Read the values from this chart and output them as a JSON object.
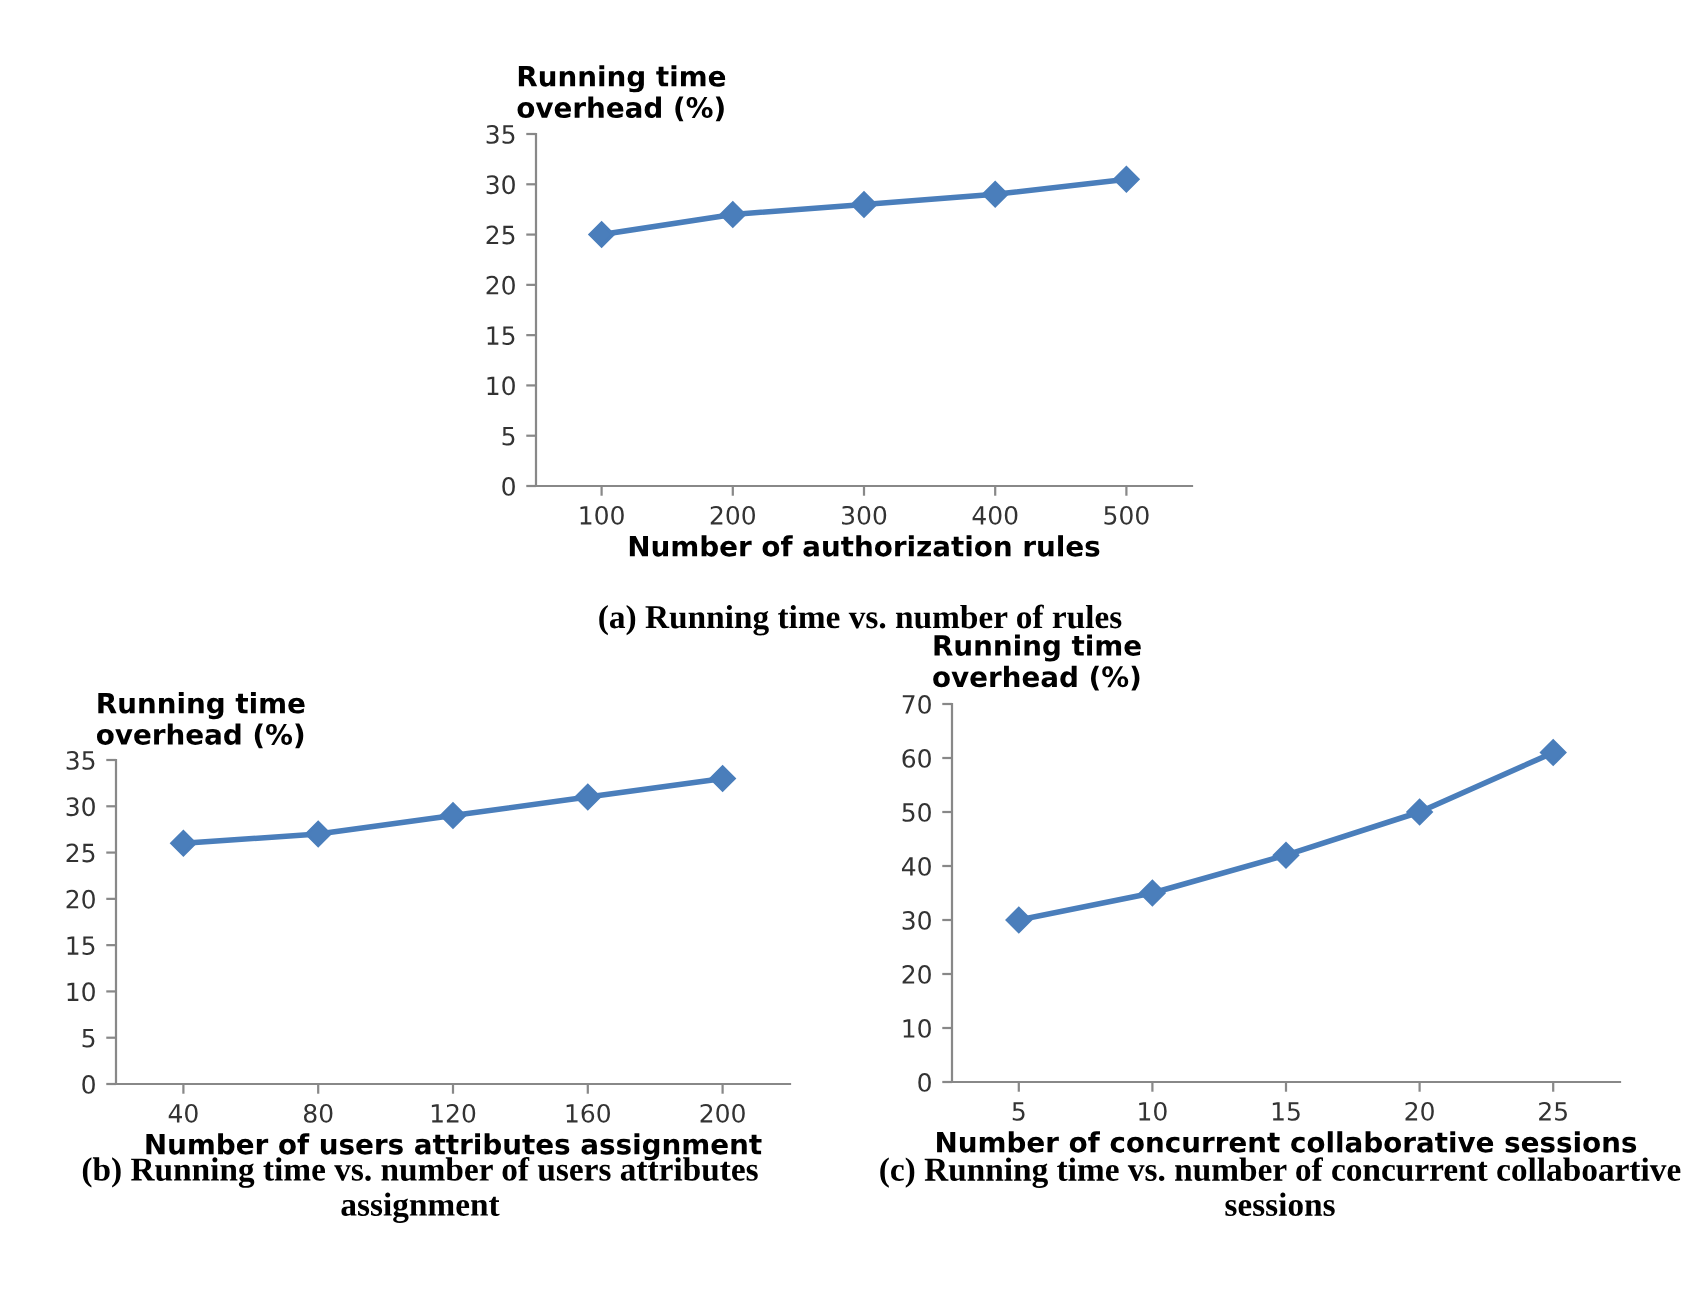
{
  "chart_data": [
    {
      "type": "line",
      "title": "(a) Running time vs. number of rules",
      "ylabel": "Running time\noverhead (%)",
      "xlabel": "Number of authorization rules",
      "categories": [
        "100",
        "200",
        "300",
        "400",
        "500"
      ],
      "series": [
        {
          "color": "#4a7ebb",
          "values": [
            25,
            27,
            28,
            29,
            30.5
          ]
        }
      ],
      "ylim": [
        0,
        35
      ],
      "yticks": [
        0,
        5,
        10,
        15,
        20,
        25,
        30,
        35
      ],
      "marker": "diamond",
      "line_style": "solid",
      "grid": false,
      "legend": false
    },
    {
      "type": "line",
      "title": "(b) Running time vs. number of users attributes assignment",
      "ylabel": "Running time\noverhead (%)",
      "xlabel": "Number of users attributes assignment",
      "categories": [
        "40",
        "80",
        "120",
        "160",
        "200"
      ],
      "series": [
        {
          "color": "#4a7ebb",
          "values": [
            26,
            27,
            29,
            31,
            33
          ]
        }
      ],
      "ylim": [
        0,
        35
      ],
      "yticks": [
        0,
        5,
        10,
        15,
        20,
        25,
        30,
        35
      ],
      "marker": "diamond",
      "line_style": "solid",
      "grid": false,
      "legend": false
    },
    {
      "type": "line",
      "title": "(c) Running time vs. number of concurrent collaboartive sessions",
      "ylabel": "Running time\noverhead (%)",
      "xlabel": "Number of concurrent collaborative sessions",
      "categories": [
        "5",
        "10",
        "15",
        "20",
        "25"
      ],
      "series": [
        {
          "color": "#4a7ebb",
          "values": [
            30,
            35,
            42,
            50,
            61
          ]
        }
      ],
      "ylim": [
        0,
        70
      ],
      "yticks": [
        0,
        10,
        20,
        30,
        40,
        50,
        60,
        70
      ],
      "marker": "diamond",
      "line_style": "solid",
      "grid": false,
      "legend": false
    }
  ]
}
